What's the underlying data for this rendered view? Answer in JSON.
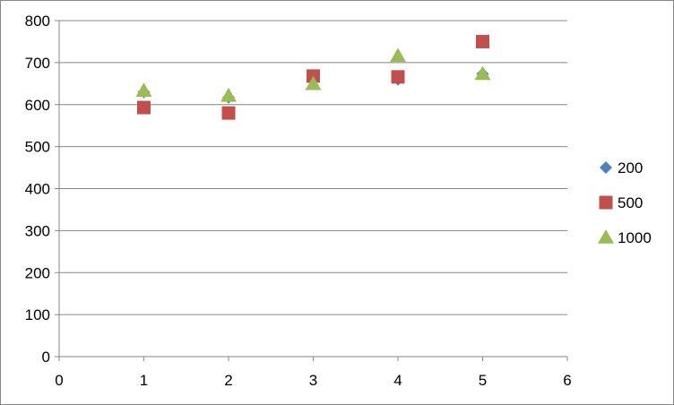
{
  "chart_data": {
    "type": "scatter",
    "xlim": [
      0,
      6
    ],
    "ylim": [
      0,
      800
    ],
    "x_ticks": [
      "0",
      "1",
      "2",
      "3",
      "4",
      "5",
      "6"
    ],
    "y_ticks": [
      "0",
      "100",
      "200",
      "300",
      "400",
      "500",
      "600",
      "700",
      "800"
    ],
    "grid": "horizontal",
    "legend_position": "right",
    "series": [
      {
        "name": "200",
        "marker": "diamond",
        "color": "#4F81BD",
        "x": [
          1,
          2,
          3,
          4,
          5
        ],
        "y": [
          630,
          617,
          668,
          660,
          673
        ]
      },
      {
        "name": "500",
        "marker": "square",
        "color": "#C0504D",
        "x": [
          1,
          2,
          3,
          4,
          5
        ],
        "y": [
          593,
          580,
          668,
          666,
          750
        ]
      },
      {
        "name": "1000",
        "marker": "triangle",
        "color": "#9BBB59",
        "x": [
          1,
          2,
          3,
          4,
          5
        ],
        "y": [
          633,
          621,
          649,
          716,
          673
        ]
      }
    ]
  }
}
